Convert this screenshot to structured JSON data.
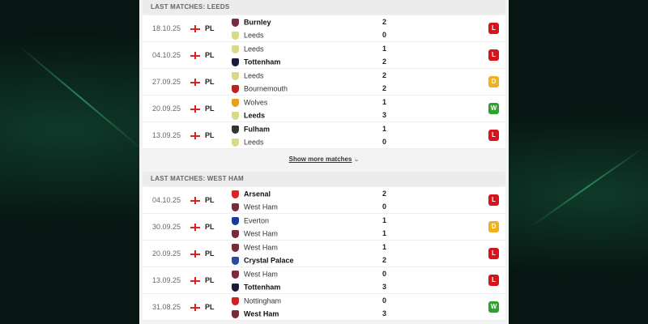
{
  "colors": {
    "loss": "#d7131b",
    "draw": "#f0b020",
    "win": "#2aa52a"
  },
  "sections": [
    {
      "title": "LAST MATCHES: LEEDS",
      "matches": [
        {
          "date": "18.10.25",
          "league": "PL",
          "home": "Burnley",
          "away": "Leeds",
          "hs": "2",
          "as": "0",
          "winner": "home",
          "result": "L",
          "home_icon": "burnley-crest-icon",
          "away_icon": "leeds-crest-icon",
          "hc": "#7a2a4a",
          "ac": "#d9d98a"
        },
        {
          "date": "04.10.25",
          "league": "PL",
          "home": "Leeds",
          "away": "Tottenham",
          "hs": "1",
          "as": "2",
          "winner": "away",
          "result": "L",
          "home_icon": "leeds-crest-icon",
          "away_icon": "tottenham-crest-icon",
          "hc": "#d9d98a",
          "ac": "#1a1a3a"
        },
        {
          "date": "27.09.25",
          "league": "PL",
          "home": "Leeds",
          "away": "Bournemouth",
          "hs": "2",
          "as": "2",
          "winner": "none",
          "result": "D",
          "home_icon": "leeds-crest-icon",
          "away_icon": "bournemouth-crest-icon",
          "hc": "#d9d98a",
          "ac": "#b22"
        },
        {
          "date": "20.09.25",
          "league": "PL",
          "home": "Wolves",
          "away": "Leeds",
          "hs": "1",
          "as": "3",
          "winner": "away",
          "result": "W",
          "home_icon": "wolves-crest-icon",
          "away_icon": "leeds-crest-icon",
          "hc": "#e8a020",
          "ac": "#d9d98a"
        },
        {
          "date": "13.09.25",
          "league": "PL",
          "home": "Fulham",
          "away": "Leeds",
          "hs": "1",
          "as": "0",
          "winner": "home",
          "result": "L",
          "home_icon": "fulham-crest-icon",
          "away_icon": "leeds-crest-icon",
          "hc": "#333",
          "ac": "#d9d98a"
        }
      ],
      "show_more": "Show more matches"
    },
    {
      "title": "LAST MATCHES: WEST HAM",
      "matches": [
        {
          "date": "04.10.25",
          "league": "PL",
          "home": "Arsenal",
          "away": "West Ham",
          "hs": "2",
          "as": "0",
          "winner": "home",
          "result": "L",
          "home_icon": "arsenal-crest-icon",
          "away_icon": "westham-crest-icon",
          "hc": "#d22",
          "ac": "#7a2a3a"
        },
        {
          "date": "30.09.25",
          "league": "PL",
          "home": "Everton",
          "away": "West Ham",
          "hs": "1",
          "as": "1",
          "winner": "none",
          "result": "D",
          "home_icon": "everton-crest-icon",
          "away_icon": "westham-crest-icon",
          "hc": "#1a3a9a",
          "ac": "#7a2a3a"
        },
        {
          "date": "20.09.25",
          "league": "PL",
          "home": "West Ham",
          "away": "Crystal Palace",
          "hs": "1",
          "as": "2",
          "winner": "away",
          "result": "L",
          "home_icon": "westham-crest-icon",
          "away_icon": "crystal-palace-crest-icon",
          "hc": "#7a2a3a",
          "ac": "#2a4aa0"
        },
        {
          "date": "13.09.25",
          "league": "PL",
          "home": "West Ham",
          "away": "Tottenham",
          "hs": "0",
          "as": "3",
          "winner": "away",
          "result": "L",
          "home_icon": "westham-crest-icon",
          "away_icon": "tottenham-crest-icon",
          "hc": "#7a2a3a",
          "ac": "#1a1a3a"
        },
        {
          "date": "31.08.25",
          "league": "PL",
          "home": "Nottingham",
          "away": "West Ham",
          "hs": "0",
          "as": "3",
          "winner": "away",
          "result": "W",
          "home_icon": "nottingham-crest-icon",
          "away_icon": "westham-crest-icon",
          "hc": "#c22",
          "ac": "#7a2a3a"
        }
      ]
    }
  ]
}
